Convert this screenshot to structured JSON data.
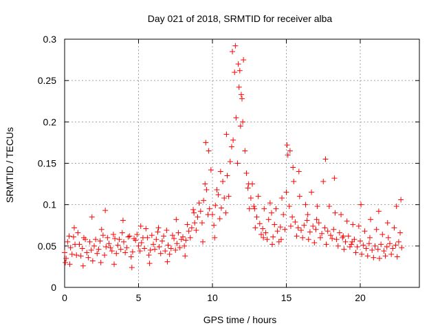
{
  "chart_data": {
    "type": "scatter",
    "title": "Day 021 of 2018, SRMTID for receiver alba",
    "xlabel": "GPS time / hours",
    "ylabel": "SRMTID / TECUs",
    "xlim": [
      0,
      24
    ],
    "ylim": [
      0,
      0.3
    ],
    "xticks": [
      0,
      5,
      10,
      15,
      20
    ],
    "xtick_labels": [
      "0",
      "5",
      "10",
      "15",
      "20"
    ],
    "yticks": [
      0,
      0.05,
      0.1,
      0.15,
      0.2,
      0.25,
      0.3
    ],
    "ytick_labels": [
      "0",
      "0.05",
      "0.1",
      "0.15",
      "0.2",
      "0.25",
      "0.3"
    ],
    "grid": true,
    "marker": "+",
    "color": "#ff0000",
    "series": [
      {
        "name": "SRMTID",
        "x": [
          0.0,
          0.2,
          0.4,
          0.6,
          0.8,
          1.0,
          1.2,
          1.4,
          1.6,
          1.8,
          2.0,
          2.2,
          2.4,
          2.6,
          2.8,
          3.0,
          3.2,
          3.4,
          3.6,
          3.8,
          4.0,
          4.2,
          4.4,
          4.6,
          4.8,
          5.0,
          5.2,
          5.4,
          5.6,
          5.8,
          6.0,
          6.2,
          6.4,
          6.6,
          6.8,
          7.0,
          7.2,
          7.4,
          7.6,
          7.8,
          8.0,
          8.2,
          8.4,
          8.6,
          8.8,
          9.0,
          9.2,
          9.4,
          9.6,
          9.8,
          10.0,
          10.2,
          10.4,
          10.6,
          10.8,
          11.0,
          11.2,
          11.4,
          11.6,
          11.8,
          12.0,
          12.2,
          12.4,
          12.6,
          12.8,
          13.0,
          13.2,
          13.4,
          13.6,
          13.8,
          14.0,
          14.2,
          14.4,
          14.6,
          14.8,
          15.0,
          15.2,
          15.4,
          15.6,
          15.8,
          16.0,
          16.2,
          16.4,
          16.6,
          16.8,
          17.0,
          17.2,
          17.4,
          17.6,
          17.8,
          18.0,
          18.2,
          18.4,
          18.6,
          18.8,
          19.0,
          19.2,
          19.4,
          19.6,
          19.8,
          20.0,
          20.2,
          20.4,
          20.6,
          20.8,
          21.0,
          21.2,
          21.4,
          21.6,
          21.8,
          22.0,
          22.2,
          22.4,
          22.6,
          22.8,
          0.1,
          0.3,
          0.5,
          0.7,
          0.9,
          1.1,
          1.3,
          1.5,
          1.7,
          1.9,
          2.1,
          2.3,
          2.5,
          2.7,
          2.9,
          3.1,
          3.3,
          3.5,
          3.7,
          3.9,
          4.1,
          4.3,
          4.5,
          4.7,
          4.9,
          5.1,
          5.3,
          5.5,
          5.7,
          5.9,
          6.1,
          6.3,
          6.5,
          6.7,
          6.9,
          7.1,
          7.3,
          7.5,
          7.7,
          7.9,
          8.1,
          8.3,
          8.5,
          8.7,
          8.9,
          9.1,
          9.3,
          9.5,
          9.7,
          9.9,
          10.1,
          10.3,
          10.5,
          10.7,
          10.9,
          11.1,
          11.3,
          11.5,
          11.7,
          11.9,
          12.1,
          12.3,
          12.5,
          12.7,
          12.9,
          13.1,
          13.3,
          13.5,
          13.7,
          13.9,
          14.1,
          14.3,
          14.5,
          14.7,
          14.9,
          15.1,
          15.3,
          15.5,
          15.7,
          15.9,
          16.1,
          16.3,
          16.5,
          16.7,
          16.9,
          17.1,
          17.3,
          17.5,
          17.7,
          17.9,
          18.1,
          18.3,
          18.5,
          18.7,
          18.9,
          19.1,
          19.3,
          19.5,
          19.7,
          19.9,
          20.1,
          20.3,
          20.5,
          20.7,
          20.9,
          21.1,
          21.3,
          21.5,
          21.7,
          21.9,
          22.1,
          22.3,
          22.5,
          22.7,
          0.05,
          0.35,
          0.65,
          1.25,
          1.85,
          2.45,
          2.75,
          3.35,
          3.95,
          4.55,
          5.15,
          5.75,
          6.35,
          6.95,
          7.55,
          8.15,
          8.75,
          9.35,
          9.55,
          9.75,
          10.15,
          10.55,
          10.95,
          11.35,
          11.55,
          11.75,
          11.85,
          11.95,
          12.05,
          12.45,
          12.85,
          13.45,
          14.05,
          14.65,
          15.05,
          15.25,
          15.45,
          15.85,
          16.45,
          17.05,
          17.65,
          18.25,
          18.85,
          19.45,
          20.05,
          20.65,
          21.25,
          21.85,
          22.45,
          22.75
        ],
        "y": [
          0.042,
          0.055,
          0.048,
          0.061,
          0.039,
          0.052,
          0.047,
          0.058,
          0.036,
          0.045,
          0.05,
          0.041,
          0.056,
          0.063,
          0.049,
          0.053,
          0.044,
          0.059,
          0.051,
          0.046,
          0.055,
          0.048,
          0.062,
          0.043,
          0.057,
          0.05,
          0.054,
          0.047,
          0.06,
          0.045,
          0.052,
          0.058,
          0.049,
          0.056,
          0.044,
          0.051,
          0.047,
          0.059,
          0.053,
          0.048,
          0.061,
          0.057,
          0.068,
          0.072,
          0.078,
          0.085,
          0.092,
          0.105,
          0.118,
          0.095,
          0.088,
          0.099,
          0.112,
          0.096,
          0.108,
          0.135,
          0.152,
          0.178,
          0.205,
          0.242,
          0.228,
          0.165,
          0.12,
          0.108,
          0.098,
          0.085,
          0.077,
          0.071,
          0.066,
          0.082,
          0.09,
          0.076,
          0.068,
          0.073,
          0.088,
          0.115,
          0.098,
          0.085,
          0.079,
          0.072,
          0.069,
          0.075,
          0.081,
          0.067,
          0.074,
          0.07,
          0.078,
          0.065,
          0.072,
          0.068,
          0.063,
          0.07,
          0.058,
          0.066,
          0.06,
          0.055,
          0.062,
          0.052,
          0.058,
          0.049,
          0.056,
          0.051,
          0.047,
          0.053,
          0.045,
          0.05,
          0.046,
          0.052,
          0.044,
          0.049,
          0.053,
          0.047,
          0.051,
          0.055,
          0.048,
          0.035,
          0.062,
          0.04,
          0.052,
          0.066,
          0.038,
          0.06,
          0.042,
          0.055,
          0.032,
          0.058,
          0.046,
          0.07,
          0.039,
          0.06,
          0.048,
          0.064,
          0.041,
          0.058,
          0.066,
          0.042,
          0.061,
          0.037,
          0.059,
          0.064,
          0.044,
          0.06,
          0.071,
          0.039,
          0.063,
          0.046,
          0.067,
          0.041,
          0.062,
          0.069,
          0.04,
          0.063,
          0.045,
          0.066,
          0.058,
          0.05,
          0.076,
          0.06,
          0.094,
          0.069,
          0.102,
          0.078,
          0.125,
          0.088,
          0.142,
          0.075,
          0.118,
          0.083,
          0.128,
          0.09,
          0.11,
          0.17,
          0.26,
          0.15,
          0.195,
          0.275,
          0.138,
          0.095,
          0.125,
          0.072,
          0.11,
          0.064,
          0.095,
          0.058,
          0.102,
          0.061,
          0.095,
          0.055,
          0.108,
          0.07,
          0.16,
          0.074,
          0.128,
          0.062,
          0.11,
          0.06,
          0.1,
          0.058,
          0.115,
          0.054,
          0.098,
          0.06,
          0.128,
          0.052,
          0.098,
          0.059,
          0.09,
          0.05,
          0.088,
          0.046,
          0.08,
          0.049,
          0.076,
          0.042,
          0.074,
          0.04,
          0.068,
          0.038,
          0.082,
          0.036,
          0.07,
          0.035,
          0.064,
          0.038,
          0.06,
          0.04,
          0.072,
          0.037,
          0.066,
          0.03,
          0.028,
          0.072,
          0.026,
          0.085,
          0.03,
          0.093,
          0.028,
          0.081,
          0.024,
          0.074,
          0.029,
          0.072,
          0.031,
          0.082,
          0.038,
          0.09,
          0.055,
          0.175,
          0.165,
          0.06,
          0.14,
          0.185,
          0.285,
          0.292,
          0.27,
          0.262,
          0.233,
          0.2,
          0.125,
          0.095,
          0.06,
          0.052,
          0.058,
          0.172,
          0.165,
          0.145,
          0.14,
          0.088,
          0.082,
          0.155,
          0.132,
          0.062,
          0.055,
          0.1,
          0.06,
          0.092,
          0.078,
          0.098,
          0.106
        ]
      }
    ]
  }
}
